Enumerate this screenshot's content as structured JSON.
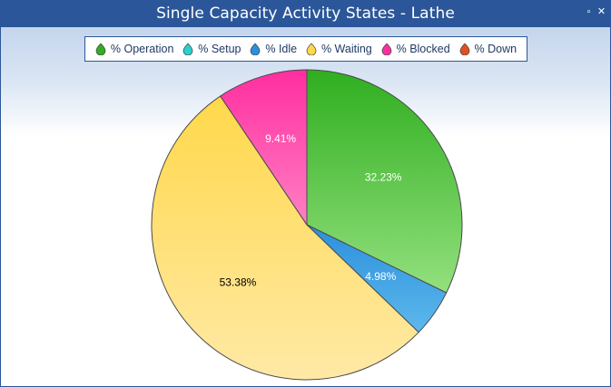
{
  "window": {
    "title": "Single Capacity Activity States - Lathe",
    "restore_glyph": "▫",
    "close_glyph": "✕"
  },
  "chart_data": {
    "type": "pie",
    "title": "Single Capacity Activity States - Lathe",
    "legend_position": "top",
    "start_angle_deg": 0,
    "direction": "clockwise",
    "slices": [
      {
        "label": "% Operation",
        "value": 32.23,
        "value_label": "32.23%",
        "color_top": "#2fae1f",
        "color_bottom": "#93e07e",
        "label_color": "#ffffff"
      },
      {
        "label": "% Setup",
        "value": 0,
        "value_label": "",
        "color_top": "#2ad0d0",
        "color_bottom": "#7fe9e9",
        "label_color": "#ffffff"
      },
      {
        "label": "% Idle",
        "value": 4.98,
        "value_label": "4.98%",
        "color_top": "#2c8fdc",
        "color_bottom": "#5cb8ec",
        "label_color": "#ffffff"
      },
      {
        "label": "% Waiting",
        "value": 53.38,
        "value_label": "53.38%",
        "color_top": "#ffd84a",
        "color_bottom": "#ffe9a6",
        "label_color": "#000000"
      },
      {
        "label": "% Blocked",
        "value": 9.41,
        "value_label": "9.41%",
        "color_top": "#ff2ea0",
        "color_bottom": "#ff80c4",
        "label_color": "#ffffff"
      },
      {
        "label": "% Down",
        "value": 0,
        "value_label": "",
        "color_top": "#e0501c",
        "color_bottom": "#f08a5a",
        "label_color": "#ffffff"
      }
    ]
  }
}
